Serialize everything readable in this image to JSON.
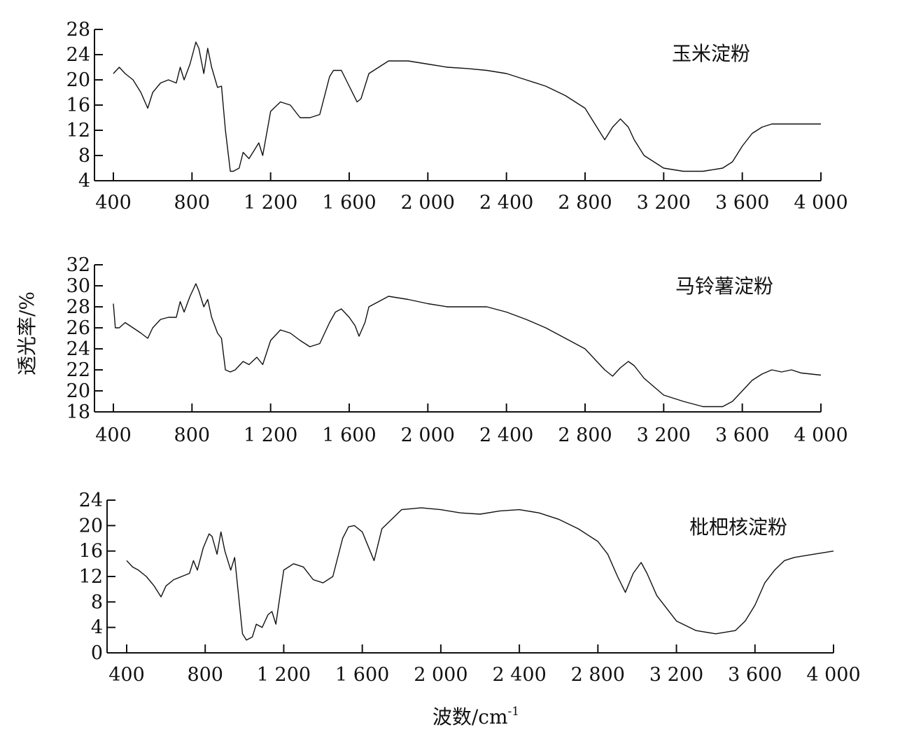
{
  "ylabel": "透光率/%",
  "xlabel_text": "波数/cm",
  "xlabel_sup": "-1",
  "chart_data": [
    {
      "type": "line",
      "name_label": "玉米淀粉",
      "xlim": [
        400,
        4000
      ],
      "ylim": [
        4,
        28
      ],
      "yticks": [
        "4",
        "8",
        "12",
        "16",
        "20",
        "24",
        "28"
      ],
      "xticks": [
        "400",
        "800",
        "1 200",
        "1 600",
        "2 000",
        "2 400",
        "2 800",
        "3 200",
        "3 600",
        "4 000"
      ],
      "x": [
        400,
        430,
        460,
        500,
        540,
        575,
        600,
        640,
        680,
        720,
        740,
        760,
        790,
        820,
        835,
        860,
        880,
        900,
        930,
        950,
        970,
        995,
        1010,
        1040,
        1060,
        1090,
        1120,
        1140,
        1160,
        1200,
        1250,
        1300,
        1350,
        1400,
        1450,
        1500,
        1520,
        1560,
        1600,
        1640,
        1660,
        1700,
        1800,
        1900,
        2000,
        2100,
        2200,
        2300,
        2400,
        2500,
        2600,
        2700,
        2800,
        2850,
        2900,
        2940,
        2980,
        3020,
        3050,
        3100,
        3200,
        3300,
        3400,
        3500,
        3550,
        3600,
        3650,
        3700,
        3750,
        3800,
        3900,
        4000
      ],
      "y": [
        21,
        22,
        21,
        20,
        18,
        15.5,
        18,
        19.5,
        20,
        19.5,
        22,
        20,
        22.5,
        26,
        25,
        21,
        25,
        22,
        18.8,
        19,
        12,
        5.5,
        5.5,
        6,
        8.5,
        7.5,
        9,
        10,
        8,
        15,
        16.5,
        16,
        14,
        14,
        14.5,
        20.5,
        21.5,
        21.5,
        19,
        16.5,
        17,
        21,
        23,
        23,
        22.5,
        22,
        21.8,
        21.5,
        21,
        20,
        19,
        17.5,
        15.5,
        13,
        10.5,
        12.5,
        13.8,
        12.5,
        10.5,
        8,
        6,
        5.5,
        5.5,
        6,
        7,
        9.5,
        11.5,
        12.5,
        13,
        13,
        13,
        13
      ]
    },
    {
      "type": "line",
      "name_label": "马铃薯淀粉",
      "xlim": [
        400,
        4000
      ],
      "ylim": [
        18,
        32
      ],
      "yticks": [
        "18",
        "20",
        "22",
        "24",
        "26",
        "28",
        "30",
        "32"
      ],
      "xticks": [
        "400",
        "800",
        "1 200",
        "1 600",
        "2 000",
        "2 400",
        "2 800",
        "3 200",
        "3 600",
        "4 000"
      ],
      "x": [
        400,
        410,
        430,
        460,
        500,
        540,
        575,
        600,
        640,
        680,
        720,
        740,
        760,
        790,
        820,
        835,
        860,
        880,
        900,
        930,
        950,
        970,
        995,
        1020,
        1060,
        1090,
        1130,
        1160,
        1200,
        1250,
        1300,
        1350,
        1400,
        1450,
        1500,
        1530,
        1560,
        1600,
        1630,
        1650,
        1680,
        1700,
        1800,
        1900,
        2000,
        2100,
        2200,
        2300,
        2400,
        2500,
        2600,
        2700,
        2800,
        2850,
        2900,
        2940,
        2980,
        3020,
        3050,
        3100,
        3200,
        3300,
        3400,
        3500,
        3550,
        3600,
        3650,
        3700,
        3750,
        3800,
        3850,
        3900,
        4000
      ],
      "y": [
        28.3,
        26,
        26,
        26.5,
        26,
        25.5,
        25,
        26,
        26.8,
        27,
        27,
        28.5,
        27.5,
        29,
        30.2,
        29.5,
        28,
        28.7,
        27,
        25.5,
        25,
        22,
        21.8,
        22,
        22.8,
        22.5,
        23.2,
        22.5,
        24.8,
        25.8,
        25.5,
        24.8,
        24.2,
        24.5,
        26.5,
        27.5,
        27.8,
        27,
        26.2,
        25.2,
        26.5,
        28,
        29,
        28.7,
        28.3,
        28,
        28,
        28,
        27.5,
        26.8,
        26,
        25,
        24,
        23,
        22,
        21.4,
        22.2,
        22.8,
        22.4,
        21.2,
        19.6,
        19,
        18.5,
        18.5,
        19,
        20,
        21,
        21.6,
        22,
        21.8,
        22,
        21.7,
        21.5
      ]
    },
    {
      "type": "line",
      "name_label": "枇杷核淀粉",
      "xlim": [
        400,
        4000
      ],
      "ylim": [
        0,
        24
      ],
      "yticks": [
        "0",
        "4",
        "8",
        "12",
        "16",
        "20",
        "24"
      ],
      "xticks": [
        "400",
        "800",
        "1 200",
        "1 600",
        "2 000",
        "2 400",
        "2 800",
        "3 200",
        "3 600",
        "4 000"
      ],
      "x": [
        400,
        430,
        460,
        500,
        540,
        575,
        600,
        640,
        680,
        720,
        740,
        760,
        790,
        820,
        835,
        860,
        880,
        900,
        930,
        950,
        970,
        990,
        1010,
        1040,
        1060,
        1090,
        1120,
        1140,
        1160,
        1200,
        1250,
        1300,
        1350,
        1400,
        1450,
        1500,
        1530,
        1560,
        1600,
        1640,
        1660,
        1700,
        1800,
        1900,
        2000,
        2100,
        2200,
        2300,
        2400,
        2500,
        2600,
        2700,
        2800,
        2850,
        2900,
        2940,
        2980,
        3020,
        3050,
        3100,
        3200,
        3300,
        3400,
        3500,
        3550,
        3600,
        3650,
        3700,
        3750,
        3800,
        3900,
        4000
      ],
      "y": [
        14.5,
        13.5,
        13,
        12,
        10.5,
        8.8,
        10.5,
        11.5,
        12,
        12.5,
        14.5,
        13,
        16.5,
        18.7,
        18.3,
        15.5,
        19,
        16,
        13,
        15,
        9,
        3,
        2,
        2.5,
        4.5,
        4,
        6,
        6.5,
        4.5,
        13,
        14,
        13.5,
        11.5,
        11,
        12,
        18,
        19.8,
        20,
        19,
        16,
        14.5,
        19.5,
        22.5,
        22.8,
        22.5,
        22,
        21.8,
        22.3,
        22.5,
        22,
        21,
        19.5,
        17.5,
        15.5,
        12,
        9.5,
        12.5,
        14.2,
        12.5,
        9,
        5,
        3.5,
        3,
        3.5,
        5,
        7.5,
        11,
        13,
        14.5,
        15,
        15.5,
        16
      ]
    }
  ]
}
